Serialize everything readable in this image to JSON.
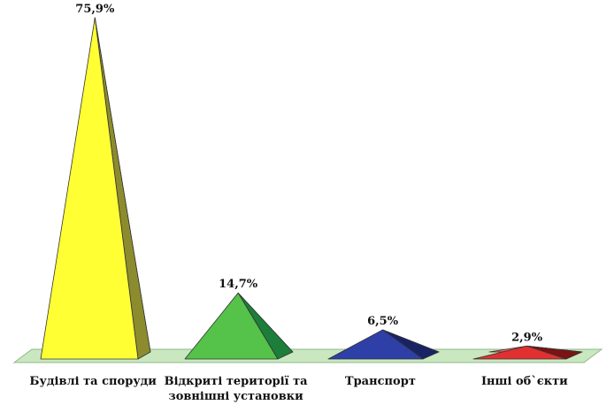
{
  "chart_data": {
    "type": "bar",
    "bar_shape": "pyramid",
    "categories": [
      [
        "Будівлі та споруди"
      ],
      [
        "Відкриті території та",
        "зовнішні установки"
      ],
      [
        "Транспорт"
      ],
      [
        "Інші об`єкти"
      ]
    ],
    "values": [
      75.9,
      14.7,
      6.5,
      2.9
    ],
    "value_labels": [
      "75,9%",
      "14,7%",
      "6,5%",
      "2,9%"
    ],
    "ylim": [
      0,
      75.9
    ],
    "grid": false,
    "legend": "none",
    "colors": {
      "bars": [
        {
          "front": "#ffff33",
          "side": "#8c8c2e",
          "top": "#ffff99"
        },
        {
          "front": "#55c24a",
          "side": "#1d7d3a",
          "top": "#8fdc7a"
        },
        {
          "front": "#2f3fa8",
          "side": "#1a2266",
          "top": "#5b6bd6"
        },
        {
          "front": "#e23030",
          "side": "#7a1414",
          "top": "#f06060"
        }
      ],
      "floor": "#c9e8c0",
      "floor_edge": "#8fb88a"
    }
  }
}
